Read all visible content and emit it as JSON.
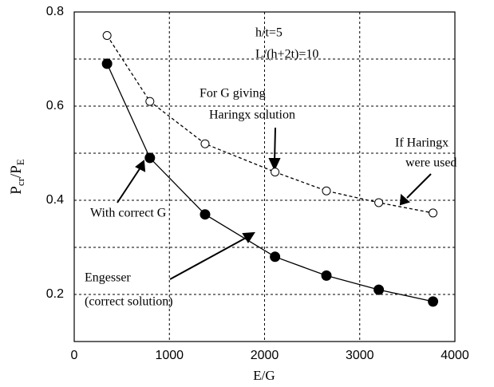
{
  "chart_data": {
    "type": "line",
    "xlabel": "E/G",
    "ylabel": [
      "P",
      "cr",
      "/P",
      "E"
    ],
    "xlim": [
      0,
      4000
    ],
    "xticks": [
      0,
      1000,
      2000,
      3000,
      4000
    ],
    "ylim": [
      0.1,
      0.8
    ],
    "yticks": [
      0.2,
      0.4,
      0.6,
      0.8
    ],
    "ygrid": [
      0.3,
      0.5,
      0.7
    ],
    "grid": true,
    "series": [
      {
        "color": "#000000",
        "marker": "filled",
        "dashed": false,
        "x": [
          345,
          795,
          1375,
          2110,
          2650,
          3200,
          3770
        ],
        "values": [
          0.69,
          0.49,
          0.37,
          0.28,
          0.24,
          0.21,
          0.185
        ]
      },
      {
        "color": "#000000",
        "marker": "open",
        "dashed": true,
        "x": [
          345,
          795,
          1375,
          2110,
          2650,
          3200,
          3770
        ],
        "values": [
          0.75,
          0.61,
          0.52,
          0.46,
          0.42,
          0.395,
          0.373
        ]
      }
    ],
    "annotations": [
      "h/t=5",
      "L/(h+2t)=10",
      "For G giving",
      "Haringx solution",
      "If Haringx",
      "were used",
      "With correct G",
      "Engesser",
      "(correct solution)"
    ]
  }
}
